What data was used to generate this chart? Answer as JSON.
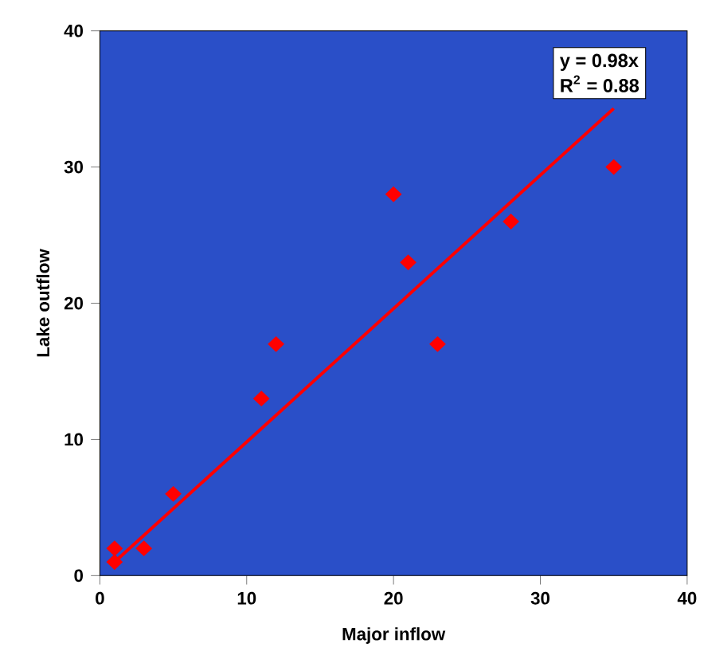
{
  "chart_data": {
    "type": "scatter",
    "xlabel": "Major inflow",
    "ylabel": "Lake outflow",
    "xlim": [
      0,
      40
    ],
    "ylim": [
      0,
      40
    ],
    "xticks": [
      0,
      10,
      20,
      30,
      40
    ],
    "yticks": [
      0,
      10,
      20,
      30,
      40
    ],
    "grid": false,
    "series": [
      {
        "marker": "diamond",
        "color": "#ff0000",
        "x": [
          1,
          1,
          3,
          5,
          11,
          12,
          20,
          21,
          23,
          28,
          35
        ],
        "values": [
          1,
          2,
          2,
          6,
          13,
          17,
          28,
          23,
          17,
          26,
          30
        ]
      },
      {
        "type": "line",
        "marker": "none",
        "color": "#ff0000",
        "x": [
          1,
          35
        ],
        "values": [
          1,
          34.3
        ]
      }
    ],
    "annotations": [
      "y = 0.98x",
      "R$^{2}$ = 0.88"
    ]
  }
}
